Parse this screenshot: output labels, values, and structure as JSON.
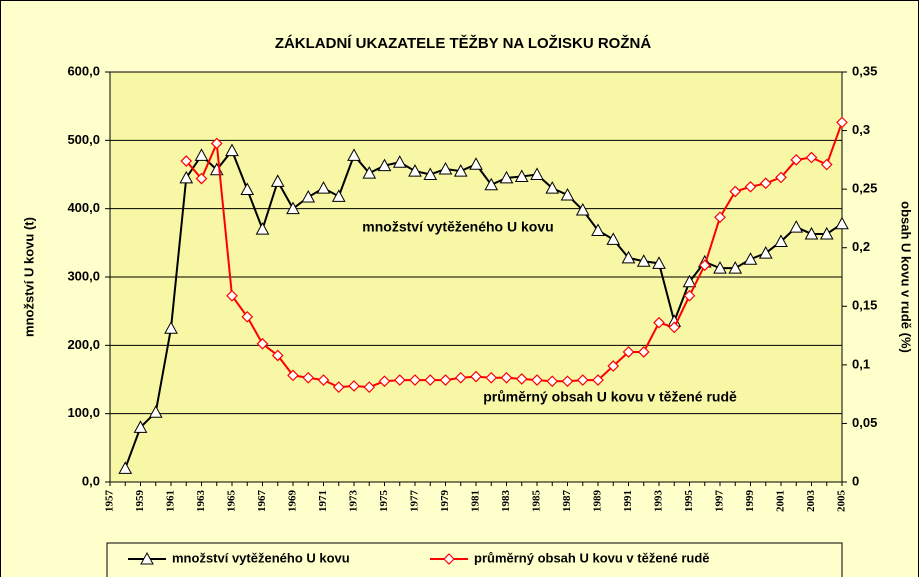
{
  "chart_data": {
    "type": "line",
    "title": "ZÁKLADNÍ UKAZATELE TĚŽBY NA LOŽISKU ROŽNÁ",
    "y_label": "množství U kovu (t)",
    "y2_label": "obsah U kovu v rudě (%)",
    "annotations": [
      "množství vytěženého U kovu",
      "průměrný obsah U kovu v těžené rudě"
    ],
    "categories": [
      "1957",
      null,
      "1959",
      null,
      "1961",
      null,
      "1963",
      null,
      "1965",
      null,
      "1967",
      null,
      "1969",
      null,
      "1971",
      null,
      "1973",
      null,
      "1975",
      null,
      "1977",
      null,
      "1979",
      null,
      "1981",
      null,
      "1983",
      null,
      "1985",
      null,
      "1987",
      null,
      "1989",
      null,
      "1991",
      null,
      "1993",
      null,
      "1995",
      null,
      "1997",
      null,
      "1999",
      null,
      "2001",
      null,
      "2003",
      null,
      "2005"
    ],
    "series": [
      {
        "name": "množství vytěženého U kovu",
        "color": "#000000",
        "marker": "triangle",
        "values": [
          null,
          20,
          80,
          102,
          225,
          445,
          478,
          457,
          485,
          428,
          370,
          440,
          400,
          417,
          430,
          418,
          478,
          452,
          463,
          468,
          455,
          450,
          458,
          455,
          465,
          435,
          445,
          447,
          450,
          430,
          420,
          398,
          368,
          355,
          328,
          323,
          320,
          235,
          293,
          322,
          313,
          313,
          326,
          335,
          352,
          373,
          363,
          363,
          378
        ]
      },
      {
        "name": "průměrný obsah U kovu v těžené rudě",
        "color": "#ff0000",
        "marker": "diamond",
        "axis": "y2",
        "values": [
          null,
          null,
          null,
          null,
          null,
          0.274,
          0.259,
          0.289,
          0.159,
          0.141,
          0.118,
          0.108,
          0.091,
          0.089,
          0.087,
          0.081,
          0.082,
          0.081,
          0.086,
          0.087,
          0.087,
          0.087,
          0.087,
          0.089,
          0.09,
          0.089,
          0.089,
          0.088,
          0.087,
          0.086,
          0.086,
          0.087,
          0.087,
          0.099,
          0.111,
          0.111,
          0.136,
          0.132,
          0.159,
          0.185,
          0.226,
          0.248,
          0.252,
          0.255,
          0.26,
          0.275,
          0.277,
          0.271,
          0.307
        ]
      }
    ],
    "ylim": [
      0,
      600
    ],
    "yticks": [
      {
        "value": 0,
        "label": "0,0"
      },
      {
        "value": 100,
        "label": "100,0"
      },
      {
        "value": 200,
        "label": "200,0"
      },
      {
        "value": 300,
        "label": "300,0"
      },
      {
        "value": 400,
        "label": "400,0"
      },
      {
        "value": 500,
        "label": "500,0"
      },
      {
        "value": 600,
        "label": "600,0"
      }
    ],
    "y2lim": [
      0,
      0.35
    ],
    "y2ticks": [
      0,
      {
        "value": 0.05,
        "label": "0,05"
      },
      {
        "value": 0.1,
        "label": "0,1"
      },
      {
        "value": 0.15,
        "label": "0,15"
      },
      {
        "value": 0.2,
        "label": "0,2"
      },
      {
        "value": 0.25,
        "label": "0,25"
      },
      {
        "value": 0.3,
        "label": "0,3"
      },
      {
        "value": 0.35,
        "label": "0,35"
      }
    ],
    "grid": true,
    "legend": "bottom"
  }
}
